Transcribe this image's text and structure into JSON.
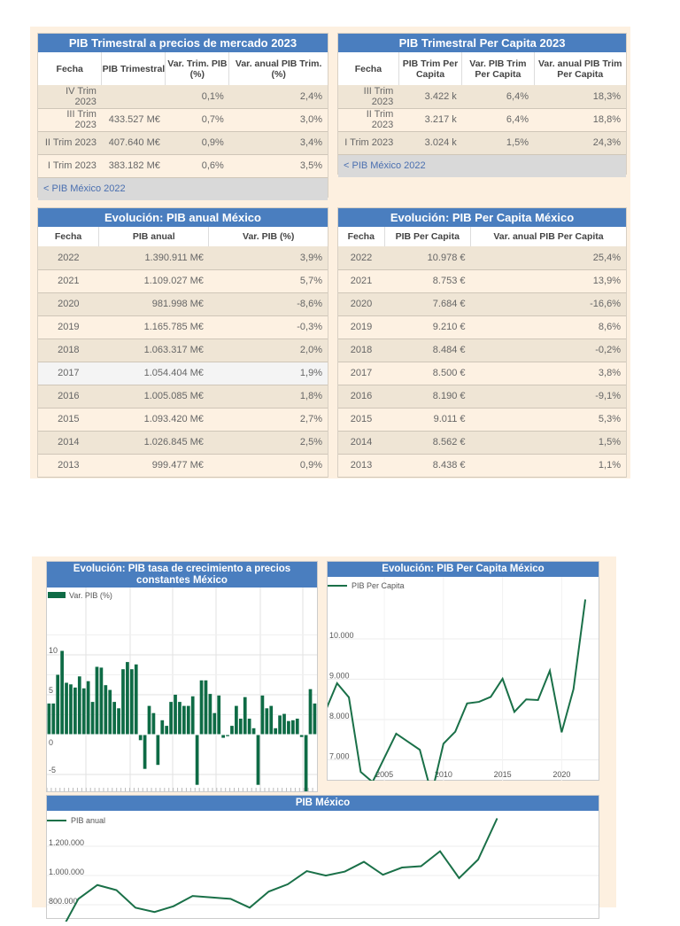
{
  "trim_table": {
    "title": "PIB Trimestral a precios de mercado 2023",
    "headers": [
      "Fecha",
      "PIB Trimestral",
      "Var. Trim. PIB (%)",
      "Var. anual PIB Trim. (%)"
    ],
    "rows": [
      [
        "IV Trim 2023",
        "",
        "0,1%",
        "2,4%"
      ],
      [
        "III Trim 2023",
        "433.527 M€",
        "0,7%",
        "3,0%"
      ],
      [
        "II Trim 2023",
        "407.640 M€",
        "0,9%",
        "3,4%"
      ],
      [
        "I Trim 2023",
        "383.182 M€",
        "0,6%",
        "3,5%"
      ]
    ],
    "footer_link": "< PIB México 2022"
  },
  "trim_pc_table": {
    "title": "PIB Trimestral Per Capita 2023",
    "headers": [
      "Fecha",
      "PIB Trim Per Capita",
      "Var. PIB Trim Per Capita",
      "Var. anual PIB Trim Per Capita"
    ],
    "rows": [
      [
        "III Trim 2023",
        "3.422 k",
        "6,4%",
        "18,3%"
      ],
      [
        "II Trim 2023",
        "3.217 k",
        "6,4%",
        "18,8%"
      ],
      [
        "I Trim 2023",
        "3.024 k",
        "1,5%",
        "24,3%"
      ]
    ],
    "footer_link": "< PIB México 2022"
  },
  "annual_table": {
    "title": "Evolución: PIB anual México",
    "headers": [
      "Fecha",
      "PIB anual",
      "Var. PIB (%)"
    ],
    "rows": [
      [
        "2022",
        "1.390.911 M€",
        "3,9%"
      ],
      [
        "2021",
        "1.109.027 M€",
        "5,7%"
      ],
      [
        "2020",
        "981.998 M€",
        "-8,6%"
      ],
      [
        "2019",
        "1.165.785 M€",
        "-0,3%"
      ],
      [
        "2018",
        "1.063.317 M€",
        "2,0%"
      ],
      [
        "2017",
        "1.054.404 M€",
        "1,9%"
      ],
      [
        "2016",
        "1.005.085 M€",
        "1,8%"
      ],
      [
        "2015",
        "1.093.420 M€",
        "2,7%"
      ],
      [
        "2014",
        "1.026.845 M€",
        "2,5%"
      ],
      [
        "2013",
        "999.477 M€",
        "0,9%"
      ]
    ]
  },
  "pc_table": {
    "title": "Evolución: PIB Per Capita México",
    "headers": [
      "Fecha",
      "PIB Per Capita",
      "Var. anual PIB Per Capita"
    ],
    "rows": [
      [
        "2022",
        "10.978 €",
        "25,4%"
      ],
      [
        "2021",
        "8.753 €",
        "13,9%"
      ],
      [
        "2020",
        "7.684 €",
        "-16,6%"
      ],
      [
        "2019",
        "9.210 €",
        "8,6%"
      ],
      [
        "2018",
        "8.484 €",
        "-0,2%"
      ],
      [
        "2017",
        "8.500 €",
        "3,8%"
      ],
      [
        "2016",
        "8.190 €",
        "-9,1%"
      ],
      [
        "2015",
        "9.011 €",
        "5,3%"
      ],
      [
        "2014",
        "8.562 €",
        "1,5%"
      ],
      [
        "2013",
        "8.438 €",
        "1,1%"
      ]
    ]
  },
  "chart_data": [
    {
      "type": "bar",
      "title": "Evolución: PIB tasa de crecimiento a precios constantes México",
      "series": [
        {
          "name": "Var. PIB (%)",
          "color": "#0e6b45",
          "values": [
            3.9,
            3.9,
            7.5,
            10.5,
            6.5,
            6.3,
            5.9,
            7.3,
            5.8,
            6.7,
            4.1,
            8.5,
            8.4,
            6.2,
            5.6,
            4.1,
            3.3,
            8.2,
            9.1,
            8.2,
            8.8,
            -0.7,
            -4.3,
            3.6,
            2.7,
            -3.8,
            1.8,
            1.1,
            4.1,
            5.0,
            4.1,
            3.6,
            3.6,
            4.8,
            -6.3,
            6.8,
            6.8,
            5.1,
            2.7,
            4.9,
            -0.4,
            -0.2,
            1.1,
            3.6,
            2.0,
            4.7,
            2.0,
            0.8,
            -6.3,
            4.9,
            3.3,
            3.6,
            0.8,
            2.4,
            2.6,
            1.7,
            1.8,
            2.0,
            -0.3,
            -8.6,
            5.7,
            3.9
          ]
        }
      ],
      "yticks": [
        -5,
        0,
        5,
        10
      ],
      "ytick_labels": [
        "-5",
        "0",
        "5",
        "10"
      ],
      "ylim": [
        -10,
        15
      ],
      "grid": true,
      "legend": "top-left"
    },
    {
      "type": "line",
      "title": "Evolución: PIB Per Capita México",
      "x": [
        1999,
        2000,
        2001,
        2002,
        2003,
        2004,
        2005,
        2006,
        2007,
        2008,
        2009,
        2010,
        2011,
        2012,
        2013,
        2014,
        2015,
        2016,
        2017,
        2018,
        2019,
        2020,
        2021,
        2022
      ],
      "series": [
        {
          "name": "PIB Per Capita",
          "color": "#1a7048",
          "values": [
            6200,
            8200,
            8900,
            8550,
            6700,
            6450,
            7050,
            7650,
            7450,
            7250,
            6150,
            7400,
            7700,
            8400,
            8438,
            8562,
            9011,
            8190,
            8500,
            8484,
            9210,
            7684,
            8753,
            10978
          ]
        }
      ],
      "yticks": [
        7000,
        8000,
        9000,
        10000
      ],
      "ytick_labels": [
        "7.000",
        "8.000",
        "9.000",
        "10.000"
      ],
      "xtick_labels": [
        "2005",
        "2010",
        "2015",
        "2020"
      ],
      "xticks": [
        2005,
        2010,
        2015,
        2020
      ],
      "grid": true,
      "legend": "top-left"
    },
    {
      "type": "line",
      "title": "PIB México",
      "x": [
        1999,
        2000,
        2001,
        2002,
        2003,
        2004,
        2005,
        2006,
        2007,
        2008,
        2009,
        2010,
        2011,
        2012,
        2013,
        2014,
        2015,
        2016,
        2017,
        2018,
        2019,
        2020,
        2021,
        2022
      ],
      "series": [
        {
          "name": "PIB anual",
          "color": "#1a7048",
          "values": [
            600000,
            840000,
            935000,
            900000,
            780000,
            750000,
            790000,
            860000,
            850000,
            840000,
            780000,
            890000,
            940000,
            1030000,
            999477,
            1026845,
            1093420,
            1005085,
            1054404,
            1063317,
            1165785,
            981998,
            1109027,
            1390911
          ]
        }
      ],
      "yticks": [
        800000,
        1000000,
        1200000
      ],
      "ytick_labels": [
        "800.000",
        "1.000.000",
        "1.200.000"
      ],
      "grid": true,
      "legend": "top-left"
    }
  ]
}
